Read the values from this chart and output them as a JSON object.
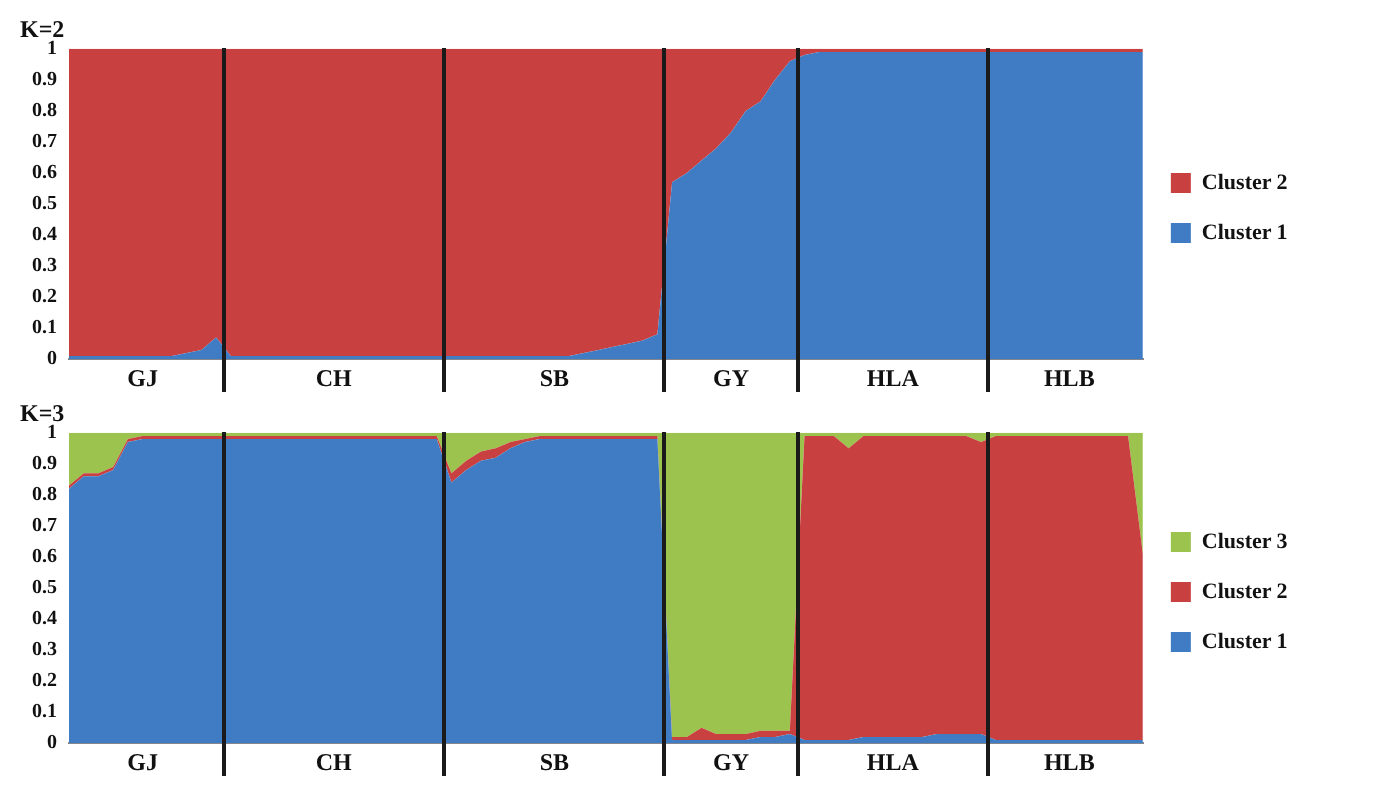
{
  "chart_data": [
    {
      "type": "area",
      "stacked": true,
      "title": "K=2",
      "legend": "right",
      "categories": [
        null,
        null,
        null,
        null,
        null,
        "GJ",
        null,
        null,
        null,
        null,
        null,
        null,
        null,
        null,
        null,
        null,
        null,
        null,
        "CH",
        null,
        null,
        null,
        null,
        null,
        null,
        null,
        null,
        null,
        null,
        null,
        null,
        null,
        null,
        "SB",
        null,
        null,
        null,
        null,
        null,
        null,
        null,
        null,
        null,
        null,
        null,
        "GY",
        null,
        null,
        null,
        null,
        null,
        null,
        null,
        null,
        null,
        null,
        "HLA",
        null,
        null,
        null,
        null,
        null,
        null,
        null,
        null,
        null,
        null,
        null,
        "HLB",
        null,
        null,
        null,
        null,
        null
      ],
      "ylim": [
        0,
        1
      ],
      "yticks": [
        0,
        0.1,
        0.2,
        0.3,
        0.4,
        0.5,
        0.6,
        0.7,
        0.8,
        0.9,
        1
      ],
      "series": [
        {
          "name": "Cluster 1",
          "color": "#3f7cc4",
          "values": [
            0.01,
            0.01,
            0.01,
            0.01,
            0.01,
            0.01,
            0.01,
            0.01,
            0.02,
            0.03,
            0.07,
            0.01,
            0.01,
            0.01,
            0.01,
            0.01,
            0.01,
            0.01,
            0.01,
            0.01,
            0.01,
            0.01,
            0.01,
            0.01,
            0.01,
            0.01,
            0.01,
            0.01,
            0.01,
            0.01,
            0.01,
            0.01,
            0.01,
            0.01,
            0.01,
            0.02,
            0.03,
            0.04,
            0.05,
            0.06,
            0.08,
            0.57,
            0.6,
            0.64,
            0.68,
            0.73,
            0.8,
            0.83,
            0.9,
            0.96,
            0.98,
            0.99,
            0.99,
            0.99,
            0.99,
            0.99,
            0.99,
            0.99,
            0.99,
            0.99,
            0.99,
            0.99,
            0.99,
            0.99,
            0.99,
            0.99,
            0.99,
            0.99,
            0.99,
            0.99,
            0.99,
            0.99,
            0.99,
            0.99
          ]
        },
        {
          "name": "Cluster 2",
          "color": "#c94040",
          "values": [
            0.99,
            0.99,
            0.99,
            0.99,
            0.99,
            0.99,
            0.99,
            0.99,
            0.98,
            0.97,
            0.93,
            0.99,
            0.99,
            0.99,
            0.99,
            0.99,
            0.99,
            0.99,
            0.99,
            0.99,
            0.99,
            0.99,
            0.99,
            0.99,
            0.99,
            0.99,
            0.99,
            0.99,
            0.99,
            0.99,
            0.99,
            0.99,
            0.99,
            0.99,
            0.99,
            0.98,
            0.97,
            0.96,
            0.95,
            0.94,
            0.92,
            0.43,
            0.4,
            0.36,
            0.32,
            0.27,
            0.2,
            0.17,
            0.1,
            0.04,
            0.02,
            0.01,
            0.01,
            0.01,
            0.01,
            0.01,
            0.01,
            0.01,
            0.01,
            0.01,
            0.01,
            0.01,
            0.01,
            0.01,
            0.01,
            0.01,
            0.01,
            0.01,
            0.01,
            0.01,
            0.01,
            0.01,
            0.01,
            0.01
          ]
        }
      ]
    },
    {
      "type": "area",
      "stacked": true,
      "title": "K=3",
      "legend": "right",
      "categories": [
        null,
        null,
        null,
        null,
        null,
        "GJ",
        null,
        null,
        null,
        null,
        null,
        null,
        null,
        null,
        null,
        null,
        null,
        null,
        "CH",
        null,
        null,
        null,
        null,
        null,
        null,
        null,
        null,
        null,
        null,
        null,
        null,
        null,
        null,
        "SB",
        null,
        null,
        null,
        null,
        null,
        null,
        null,
        null,
        null,
        null,
        null,
        "GY",
        null,
        null,
        null,
        null,
        null,
        null,
        null,
        null,
        null,
        null,
        "HLA",
        null,
        null,
        null,
        null,
        null,
        null,
        null,
        null,
        null,
        null,
        null,
        "HLB",
        null,
        null,
        null,
        null,
        null
      ],
      "ylim": [
        0,
        1
      ],
      "yticks": [
        0,
        0.1,
        0.2,
        0.3,
        0.4,
        0.5,
        0.6,
        0.7,
        0.8,
        0.9,
        1
      ],
      "series": [
        {
          "name": "Cluster 1",
          "color": "#3f7cc4",
          "values": [
            0.82,
            0.86,
            0.86,
            0.88,
            0.97,
            0.98,
            0.98,
            0.98,
            0.98,
            0.98,
            0.98,
            0.98,
            0.98,
            0.98,
            0.98,
            0.98,
            0.98,
            0.98,
            0.98,
            0.98,
            0.98,
            0.98,
            0.98,
            0.98,
            0.98,
            0.98,
            0.84,
            0.88,
            0.91,
            0.92,
            0.95,
            0.97,
            0.98,
            0.98,
            0.98,
            0.98,
            0.98,
            0.98,
            0.98,
            0.98,
            0.98,
            0.01,
            0.01,
            0.01,
            0.01,
            0.01,
            0.01,
            0.02,
            0.02,
            0.03,
            0.01,
            0.01,
            0.01,
            0.01,
            0.02,
            0.02,
            0.02,
            0.02,
            0.02,
            0.03,
            0.03,
            0.03,
            0.03,
            0.01,
            0.01,
            0.01,
            0.01,
            0.01,
            0.01,
            0.01,
            0.01,
            0.01,
            0.01,
            0.01
          ]
        },
        {
          "name": "Cluster 2",
          "color": "#c94040",
          "values": [
            0.01,
            0.01,
            0.01,
            0.01,
            0.01,
            0.01,
            0.01,
            0.01,
            0.01,
            0.01,
            0.01,
            0.01,
            0.01,
            0.01,
            0.01,
            0.01,
            0.01,
            0.01,
            0.01,
            0.01,
            0.01,
            0.01,
            0.01,
            0.01,
            0.01,
            0.01,
            0.03,
            0.03,
            0.03,
            0.03,
            0.02,
            0.01,
            0.01,
            0.01,
            0.01,
            0.01,
            0.01,
            0.01,
            0.01,
            0.01,
            0.01,
            0.01,
            0.01,
            0.04,
            0.02,
            0.02,
            0.02,
            0.02,
            0.02,
            0.01,
            0.98,
            0.98,
            0.98,
            0.94,
            0.97,
            0.97,
            0.97,
            0.97,
            0.97,
            0.96,
            0.96,
            0.96,
            0.94,
            0.98,
            0.98,
            0.98,
            0.98,
            0.98,
            0.98,
            0.98,
            0.98,
            0.98,
            0.98,
            0.6
          ]
        },
        {
          "name": "Cluster 3",
          "color": "#9bc34d",
          "values": [
            0.17,
            0.13,
            0.13,
            0.11,
            0.02,
            0.01,
            0.01,
            0.01,
            0.01,
            0.01,
            0.01,
            0.01,
            0.01,
            0.01,
            0.01,
            0.01,
            0.01,
            0.01,
            0.01,
            0.01,
            0.01,
            0.01,
            0.01,
            0.01,
            0.01,
            0.01,
            0.13,
            0.09,
            0.06,
            0.05,
            0.03,
            0.02,
            0.01,
            0.01,
            0.01,
            0.01,
            0.01,
            0.01,
            0.01,
            0.01,
            0.01,
            0.98,
            0.98,
            0.95,
            0.97,
            0.97,
            0.97,
            0.96,
            0.96,
            0.96,
            0.01,
            0.01,
            0.01,
            0.05,
            0.01,
            0.01,
            0.01,
            0.01,
            0.01,
            0.01,
            0.01,
            0.01,
            0.03,
            0.01,
            0.01,
            0.01,
            0.01,
            0.01,
            0.01,
            0.01,
            0.01,
            0.01,
            0.01,
            0.39
          ]
        }
      ]
    }
  ]
}
